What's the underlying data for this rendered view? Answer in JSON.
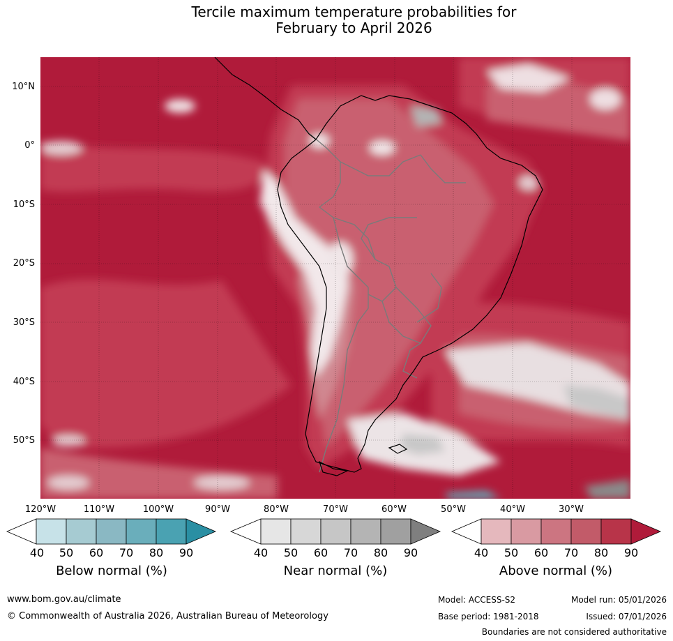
{
  "title": {
    "line1": "Tercile maximum temperature probabilities for",
    "line2": "February to April 2026"
  },
  "map": {
    "latitude_labels": [
      "10°N",
      "0°",
      "10°S",
      "20°S",
      "30°S",
      "40°S",
      "50°S"
    ],
    "longitude_labels": [
      "120°W",
      "110°W",
      "100°W",
      "90°W",
      "80°W",
      "70°W",
      "60°W",
      "50°W",
      "40°W",
      "30°W"
    ],
    "colors": {
      "ocean_dominant": "#b01b3a",
      "a80": "#c23a52",
      "a70": "#c9616f",
      "a60": "#d08790",
      "a50": "#dba8ad",
      "a40": "#e6c5c9",
      "white": "#f4eeee",
      "n_grey": "#c8c8c8",
      "n_dark": "#8a8a8a",
      "b_teal": "#5ab5c4",
      "coast": "#000000",
      "border": "#7a7a7a"
    }
  },
  "legends": [
    {
      "title": "Below normal (%)",
      "ticks": [
        "40",
        "50",
        "60",
        "70",
        "80",
        "90"
      ],
      "colors": [
        "#ffffff",
        "#c7e2e8",
        "#a6cbd2",
        "#8ab8c3",
        "#6aaebb",
        "#4aa2b2",
        "#2a8fa3"
      ]
    },
    {
      "title": "Near normal (%)",
      "ticks": [
        "40",
        "50",
        "60",
        "70",
        "80",
        "90"
      ],
      "colors": [
        "#ffffff",
        "#e6e6e6",
        "#d7d7d7",
        "#c6c6c6",
        "#b4b4b4",
        "#a0a0a0",
        "#7f7f7f"
      ]
    },
    {
      "title": "Above normal (%)",
      "ticks": [
        "40",
        "50",
        "60",
        "70",
        "80",
        "90"
      ],
      "colors": [
        "#ffffff",
        "#e5b8bd",
        "#d99aa2",
        "#cc7581",
        "#c25b69",
        "#b83449",
        "#b01b3a"
      ]
    }
  ],
  "footer": {
    "website": "www.bom.gov.au/climate",
    "copyright": "© Commonwealth of Australia 2026, Australian Bureau of Meteorology",
    "model": "Model: ACCESS-S2",
    "base_period": "Base period: 1981-2018",
    "model_run": "Model run: 05/01/2026",
    "issued": "Issued: 07/01/2026",
    "disclaimer": "Boundaries are not considered authoritative"
  }
}
